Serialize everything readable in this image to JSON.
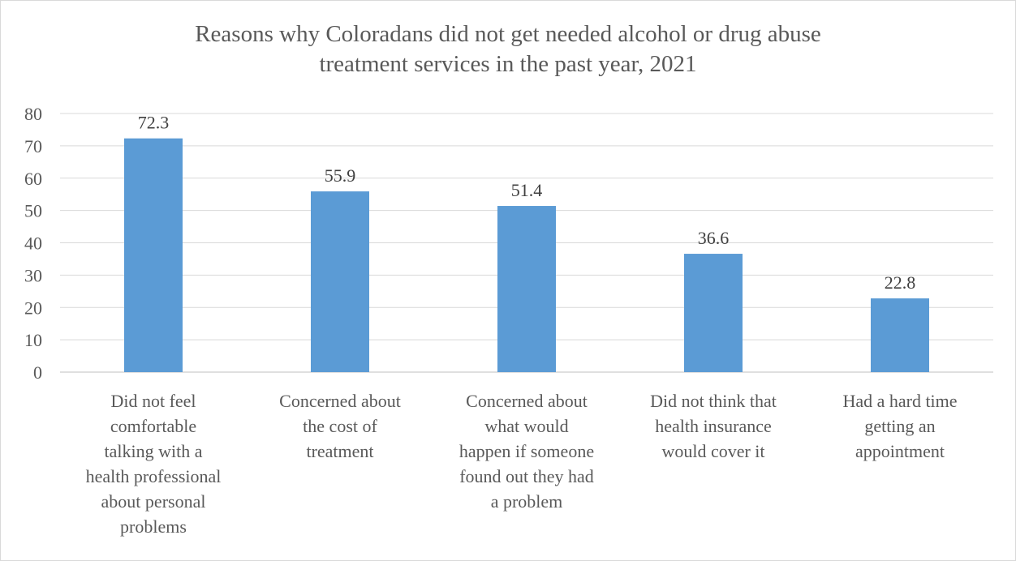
{
  "chart_data": {
    "type": "bar",
    "title_lines": [
      "Reasons why Coloradans did not get needed alcohol or drug abuse",
      "treatment services in the past year, 2021"
    ],
    "categories": [
      [
        "Did not feel",
        "comfortable",
        "talking with a",
        "health professional",
        "about personal",
        "problems"
      ],
      [
        "Concerned about",
        "the cost of",
        "treatment"
      ],
      [
        "Concerned about",
        "what would",
        "happen if someone",
        "found out they had",
        "a problem"
      ],
      [
        "Did not think that",
        "health insurance",
        "would cover it"
      ],
      [
        "Had a hard time",
        "getting an",
        "appointment"
      ]
    ],
    "values": [
      72.3,
      55.9,
      51.4,
      36.6,
      22.8
    ],
    "value_labels": [
      "72.3",
      "55.9",
      "51.4",
      "36.6",
      "22.8"
    ],
    "ylim": [
      0,
      80
    ],
    "yticks": [
      0,
      10,
      20,
      30,
      40,
      50,
      60,
      70,
      80
    ],
    "grid": true,
    "legend": "none",
    "bar_color": "#5b9bd5",
    "grid_color": "#d9d9d9"
  }
}
